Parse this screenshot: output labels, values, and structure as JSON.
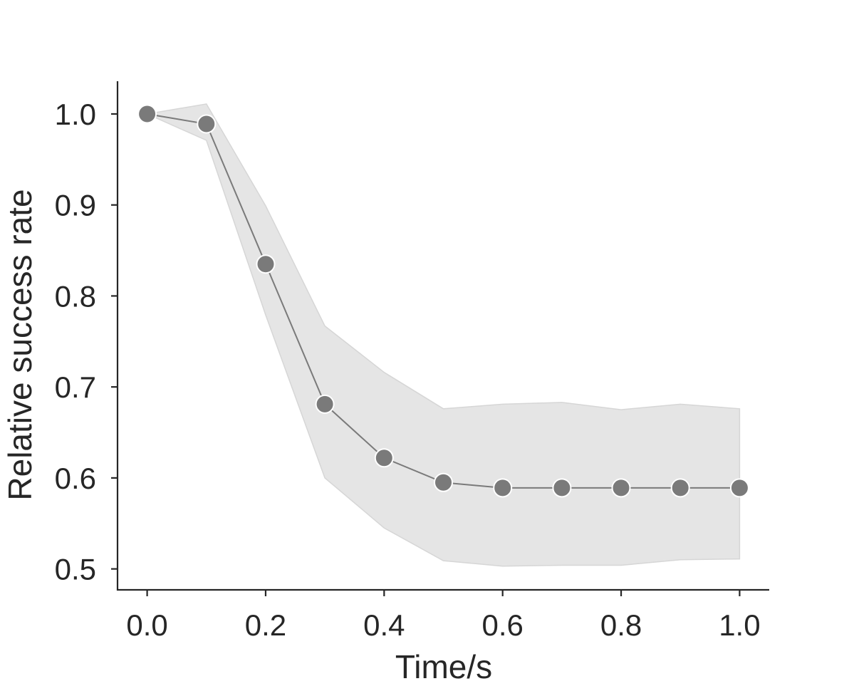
{
  "chart_data": {
    "type": "line",
    "title": "",
    "xlabel": "Time/s",
    "ylabel": "Relative success rate",
    "xlim": [
      -0.05,
      1.05
    ],
    "ylim": [
      0.477,
      1.036
    ],
    "xticks": [
      0.0,
      0.2,
      0.4,
      0.6,
      0.8,
      1.0
    ],
    "xtick_labels": [
      "0.0",
      "0.2",
      "0.4",
      "0.6",
      "0.8",
      "1.0"
    ],
    "yticks": [
      0.5,
      0.6,
      0.7,
      0.8,
      0.9,
      1.0
    ],
    "ytick_labels": [
      "0.5",
      "0.6",
      "0.7",
      "0.8",
      "0.9",
      "1.0"
    ],
    "grid": false,
    "series": [
      {
        "x": [
          0.0,
          0.1,
          0.2,
          0.3,
          0.4,
          0.5,
          0.6,
          0.7,
          0.8,
          0.9,
          1.0
        ],
        "values": [
          1.0,
          0.989,
          0.835,
          0.681,
          0.622,
          0.595,
          0.589,
          0.589,
          0.589,
          0.589,
          0.589
        ],
        "band_upper": [
          1.0,
          1.011,
          0.899,
          0.767,
          0.716,
          0.676,
          0.681,
          0.683,
          0.675,
          0.681,
          0.676
        ],
        "band_lower": [
          1.0,
          0.971,
          0.779,
          0.6,
          0.545,
          0.509,
          0.503,
          0.504,
          0.504,
          0.51,
          0.511
        ]
      }
    ],
    "colors": {
      "line": "#7a7a7a",
      "marker": "#7a7a7a",
      "marker_edge": "#ffffff",
      "band": "#e5e5e5",
      "band_edge": "#d6d6d6",
      "axis": "#262626"
    }
  }
}
